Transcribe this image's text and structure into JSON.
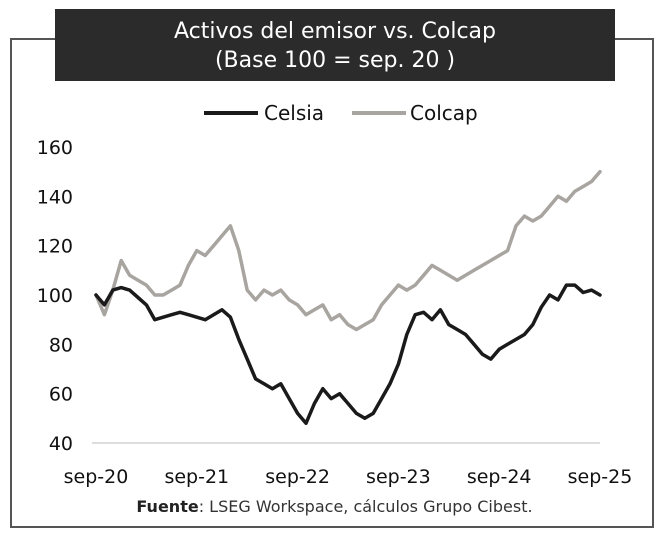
{
  "title": {
    "line1": "Activos del emisor vs. Colcap",
    "line2": "(Base 100 = sep. 20 )"
  },
  "source": {
    "label": "Fuente",
    "text": ": LSEG Workspace, cálculos Grupo Cibest."
  },
  "chart_data": {
    "type": "line",
    "title": "Activos del emisor vs. Colcap (Base 100 = sep. 20 )",
    "xlabel": "",
    "ylabel": "",
    "ylim": [
      40,
      160
    ],
    "yticks": [
      "40",
      "60",
      "80",
      "100",
      "120",
      "140",
      "160"
    ],
    "xticks": [
      "sep-20",
      "sep-21",
      "sep-22",
      "sep-23",
      "sep-24",
      "sep-25"
    ],
    "xlim": [
      0,
      60
    ],
    "grid": false,
    "legend_position": "top-center",
    "x_note": "x in months since sep-20",
    "series": [
      {
        "name": "Celsia",
        "color": "#1a1a1a",
        "x": [
          0,
          1,
          2,
          3,
          4,
          5,
          6,
          7,
          8,
          9,
          10,
          11,
          12,
          13,
          14,
          15,
          16,
          17,
          18,
          19,
          20,
          21,
          22,
          23,
          24,
          25,
          26,
          27,
          28,
          29,
          30,
          31,
          32,
          33,
          34,
          35,
          36,
          37,
          38,
          39,
          40,
          41,
          42,
          43,
          44,
          45,
          46,
          47,
          48,
          49,
          50,
          51,
          52,
          53,
          54,
          55,
          56,
          57,
          58,
          59,
          60
        ],
        "values": [
          100,
          96,
          102,
          103,
          102,
          99,
          96,
          90,
          91,
          92,
          93,
          92,
          91,
          90,
          92,
          94,
          91,
          82,
          74,
          66,
          64,
          62,
          64,
          58,
          52,
          48,
          56,
          62,
          58,
          60,
          56,
          52,
          50,
          52,
          58,
          64,
          72,
          84,
          92,
          93,
          90,
          94,
          88,
          86,
          84,
          80,
          76,
          74,
          78,
          80,
          82,
          84,
          88,
          95,
          100,
          98,
          104,
          104,
          101,
          102,
          100
        ]
      },
      {
        "name": "Colcap",
        "color": "#a8a4a0",
        "x": [
          0,
          1,
          2,
          3,
          4,
          5,
          6,
          7,
          8,
          9,
          10,
          11,
          12,
          13,
          14,
          15,
          16,
          17,
          18,
          19,
          20,
          21,
          22,
          23,
          24,
          25,
          26,
          27,
          28,
          29,
          30,
          31,
          32,
          33,
          34,
          35,
          36,
          37,
          38,
          39,
          40,
          41,
          42,
          43,
          44,
          45,
          46,
          47,
          48,
          49,
          50,
          51,
          52,
          53,
          54,
          55,
          56,
          57,
          58,
          59,
          60
        ],
        "values": [
          100,
          92,
          102,
          114,
          108,
          106,
          104,
          100,
          100,
          102,
          104,
          112,
          118,
          116,
          120,
          124,
          128,
          118,
          102,
          98,
          102,
          100,
          102,
          98,
          96,
          92,
          94,
          96,
          90,
          92,
          88,
          86,
          88,
          90,
          96,
          100,
          104,
          102,
          104,
          108,
          112,
          110,
          108,
          106,
          108,
          110,
          112,
          114,
          116,
          118,
          128,
          132,
          130,
          132,
          136,
          140,
          138,
          142,
          144,
          146,
          150
        ]
      }
    ]
  }
}
